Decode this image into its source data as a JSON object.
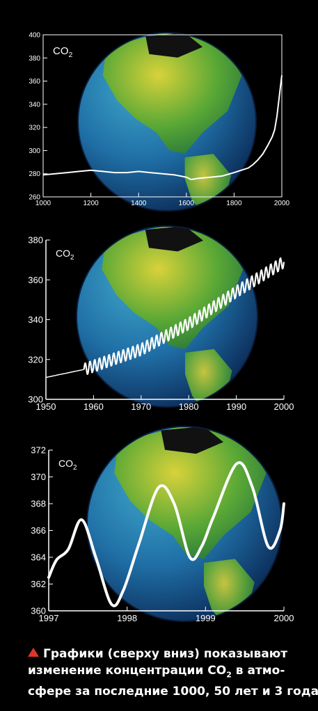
{
  "chart_data": [
    {
      "type": "line",
      "label": "CO",
      "label_sub": "2",
      "xlim": [
        1000,
        2000
      ],
      "ylim": [
        260,
        400
      ],
      "x_ticks": [
        "1000",
        "1200",
        "1400",
        "1600",
        "1800",
        "2000"
      ],
      "y_ticks": [
        "260",
        "280",
        "300",
        "320",
        "340",
        "360",
        "380",
        "400"
      ],
      "series": [
        {
          "x": [
            1000,
            1050,
            1100,
            1150,
            1200,
            1250,
            1300,
            1350,
            1400,
            1450,
            1500,
            1550,
            1600,
            1620,
            1650,
            1700,
            1750,
            1800,
            1830,
            1860,
            1880,
            1900,
            1920,
            1940,
            1960,
            1970,
            1980,
            1990,
            2000
          ],
          "y": [
            279,
            280,
            281,
            282,
            283,
            282,
            281,
            281,
            282,
            281,
            280,
            279,
            277,
            275,
            276,
            277,
            278,
            281,
            283,
            285,
            288,
            292,
            297,
            304,
            312,
            318,
            330,
            348,
            365
          ]
        }
      ]
    },
    {
      "type": "line",
      "label": "CO",
      "label_sub": "2",
      "xlim": [
        1950,
        2000
      ],
      "ylim": [
        300,
        380
      ],
      "x_ticks": [
        "1950",
        "1960",
        "1970",
        "1980",
        "1990",
        "2000"
      ],
      "y_ticks": [
        "300",
        "320",
        "340",
        "360",
        "380"
      ],
      "series": [
        {
          "trend": {
            "x": [
              1950,
              1958,
              1970,
              1980,
              1990,
              2000
            ],
            "y": [
              311,
              315,
              325,
              338,
              354,
              369
            ]
          },
          "seasonal_amplitude": 3
        }
      ]
    },
    {
      "type": "line",
      "label": "CO",
      "label_sub": "2",
      "xlim": [
        1997,
        2000
      ],
      "ylim": [
        360,
        372
      ],
      "x_ticks": [
        "1997",
        "1998",
        "1999",
        "2000"
      ],
      "y_ticks": [
        "360",
        "362",
        "364",
        "366",
        "368",
        "370",
        "372"
      ],
      "series": [
        {
          "x": [
            1997.0,
            1997.1,
            1997.25,
            1997.42,
            1997.6,
            1997.8,
            1997.95,
            1998.15,
            1998.4,
            1998.6,
            1998.8,
            1998.95,
            1999.1,
            1999.4,
            1999.6,
            1999.8,
            1999.95,
            2000.0
          ],
          "y": [
            362.5,
            363.8,
            364.6,
            366.8,
            364.0,
            360.5,
            361.5,
            365.0,
            369.2,
            368.0,
            364.0,
            364.8,
            367.0,
            371.0,
            369.2,
            364.8,
            366.0,
            368.0
          ]
        }
      ]
    }
  ],
  "caption": {
    "line1": "Графики (сверху вниз) показывают",
    "line2_pre": "изменение концентрации CO",
    "line2_sub": "2",
    "line2_post": " в атмо-",
    "line3": "сфере за последние 1000, 50 лет и 3 года"
  },
  "colors": {
    "line": "#ffffff",
    "axis": "#ffffff",
    "caption_marker": "#e0352b"
  }
}
